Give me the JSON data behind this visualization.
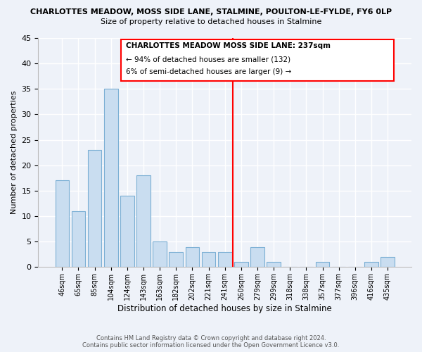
{
  "title_line1": "CHARLOTTES MEADOW, MOSS SIDE LANE, STALMINE, POULTON-LE-FYLDE, FY6 0LP",
  "title_line2": "Size of property relative to detached houses in Stalmine",
  "xlabel": "Distribution of detached houses by size in Stalmine",
  "ylabel": "Number of detached properties",
  "bar_labels": [
    "46sqm",
    "65sqm",
    "85sqm",
    "104sqm",
    "124sqm",
    "143sqm",
    "163sqm",
    "182sqm",
    "202sqm",
    "221sqm",
    "241sqm",
    "260sqm",
    "279sqm",
    "299sqm",
    "318sqm",
    "338sqm",
    "357sqm",
    "377sqm",
    "396sqm",
    "416sqm",
    "435sqm"
  ],
  "bar_values": [
    17,
    11,
    23,
    35,
    14,
    18,
    5,
    3,
    4,
    3,
    3,
    1,
    4,
    1,
    0,
    0,
    1,
    0,
    0,
    1,
    2
  ],
  "bar_color": "#c9ddf0",
  "bar_edge_color": "#7bafd4",
  "marker_index": 10,
  "annotation_title": "CHARLOTTES MEADOW MOSS SIDE LANE: 237sqm",
  "annotation_line2": "← 94% of detached houses are smaller (132)",
  "annotation_line3": "6% of semi-detached houses are larger (9) →",
  "ylim": [
    0,
    45
  ],
  "yticks": [
    0,
    5,
    10,
    15,
    20,
    25,
    30,
    35,
    40,
    45
  ],
  "footer_line1": "Contains HM Land Registry data © Crown copyright and database right 2024.",
  "footer_line2": "Contains public sector information licensed under the Open Government Licence v3.0.",
  "bg_color": "#eef2f9",
  "grid_color": "#ffffff"
}
